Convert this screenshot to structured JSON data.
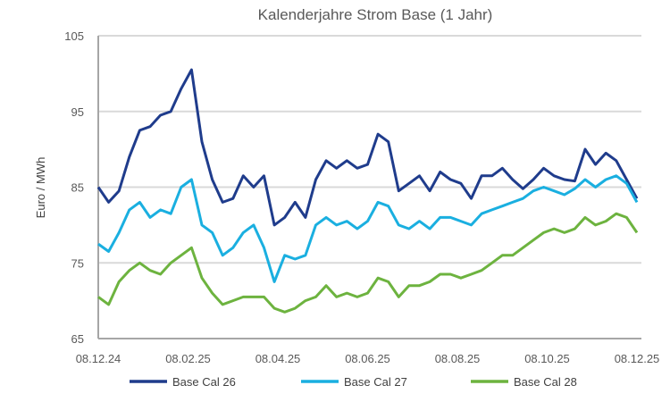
{
  "chart_data": {
    "type": "line",
    "title": "Kalenderjahre Strom Base (1 Jahr)",
    "xlabel": "",
    "ylabel": "Euro / MWh",
    "ylim": [
      65,
      105
    ],
    "yticks": [
      "65",
      "75",
      "85",
      "95",
      "105"
    ],
    "ytick_values": [
      65,
      75,
      85,
      95,
      105
    ],
    "xticks": [
      "08.12.24",
      "08.02.25",
      "08.04.25",
      "08.06.25",
      "08.08.25",
      "08.10.25",
      "08.12.25"
    ],
    "x_sampling": "weekly from 08.12.24 to 08.12.25",
    "grid": "horizontal",
    "legend_position": "bottom",
    "series": [
      {
        "name": "Base Cal 26",
        "color": "#1F3C8C",
        "values": [
          85,
          83,
          84.5,
          89,
          92.5,
          93,
          94.5,
          95,
          98,
          100.5,
          91,
          86,
          83,
          83.5,
          86.5,
          85,
          86.5,
          80,
          81,
          83,
          81,
          86,
          88.5,
          87.5,
          88.5,
          87.5,
          88,
          92,
          91,
          84.5,
          85.5,
          86.5,
          84.5,
          87,
          86,
          85.5,
          83.5,
          86.5,
          86.5,
          87.5,
          86,
          84.8,
          86,
          87.5,
          86.5,
          86,
          85.8,
          90,
          88,
          89.5,
          88.5,
          86,
          83.5
        ]
      },
      {
        "name": "Base Cal 27",
        "color": "#1AAFE0",
        "values": [
          77.5,
          76.5,
          79,
          82,
          83,
          81,
          82,
          81.5,
          85,
          86,
          80,
          79,
          76,
          77,
          79,
          80,
          77,
          72.5,
          76,
          75.5,
          76,
          80,
          81,
          80,
          80.5,
          79.5,
          80.5,
          83,
          82.5,
          80,
          79.5,
          80.5,
          79.5,
          81,
          81,
          80.5,
          80,
          81.5,
          82,
          82.5,
          83,
          83.5,
          84.5,
          85,
          84.5,
          84,
          84.8,
          86,
          85,
          86,
          86.5,
          85.5,
          83
        ]
      },
      {
        "name": "Base Cal 28",
        "color": "#6DB33F",
        "values": [
          70.5,
          69.5,
          72.5,
          74,
          75,
          74,
          73.5,
          75,
          76,
          77,
          73,
          71,
          69.5,
          70,
          70.5,
          70.5,
          70.5,
          69,
          68.5,
          69,
          70,
          70.5,
          72,
          70.5,
          71,
          70.5,
          71,
          73,
          72.5,
          70.5,
          72,
          72,
          72.5,
          73.5,
          73.5,
          73,
          73.5,
          74,
          75,
          76,
          76,
          77,
          78,
          79,
          79.5,
          79,
          79.5,
          81,
          80,
          80.5,
          81.5,
          81,
          79
        ]
      }
    ]
  }
}
